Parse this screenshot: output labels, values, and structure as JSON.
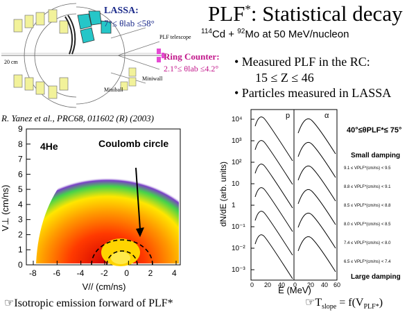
{
  "title": {
    "main": "PLF",
    "sup": "*",
    "rest": ": Statistical decay"
  },
  "reaction": {
    "a_mass": "114",
    "a_el": "Cd + ",
    "b_mass": "92",
    "b_el": "Mo at 50 MeV/nucleon"
  },
  "detector": {
    "lassa_label": "LASSA:",
    "lassa_range": "7°≤ θlab ≤58°",
    "ring_label": "Ring Counter:",
    "ring_range": "2.1°≤ θlab ≤4.2°",
    "plf_telescope": "PLF telescope",
    "miniwall": "Miniwall",
    "miniball": "Miniball",
    "scale": "20 cm",
    "colors": {
      "lassa": "#25c6c8",
      "ring": "#e64bd4",
      "miniball": "#f2f29a"
    }
  },
  "bullets": {
    "b1": "• Measured PLF in the RC:",
    "b1_range": "15 ≤ Z ≤ 46",
    "b2": "• Particles measured in LASSA"
  },
  "reference": "R. Yanez et al., PRC68, 011602 (R) (2003)",
  "vplot": {
    "label_he": "4He",
    "coulomb": "Coulomb circle",
    "ylabel": "V⊥ (cm/ns)",
    "xlabel": "V// (cm/ns)",
    "xticks": [
      "-8",
      "-6",
      "-4",
      "-2",
      "0",
      "2",
      "4"
    ],
    "yticks": [
      "0",
      "1",
      "2",
      "3",
      "4",
      "5",
      "6",
      "7",
      "8",
      "9"
    ]
  },
  "spectra": {
    "ylabel": "dN/dE (arb. units)",
    "xlabel": "E (MeV)",
    "panel_p": "p",
    "panel_alpha": "α",
    "theta": "40°≤θPLF*≤ 75°",
    "small_damping": "Small damping",
    "large_damping": "Large damping",
    "yticks": [
      "10⁴",
      "10³",
      "10²",
      "10",
      "1",
      "10⁻¹",
      "10⁻²",
      "10⁻³"
    ],
    "xticks": [
      "0",
      "20",
      "40",
      "0",
      "20",
      "40",
      "60"
    ],
    "bins": [
      "9.1 ≤ VPLF*(cm/ns) < 9.5",
      "8.8 ≤ VPLF*(cm/ns) < 9.1",
      "8.5 ≤ VPLF*(cm/ns) < 8.8",
      "8.0 ≤ VPLF*(cm/ns) < 8.5",
      "7.4 ≤ VPLF*(cm/ns) < 8.0",
      "6.5 ≤ VPLF*(cm/ns) < 7.4"
    ]
  },
  "footer": {
    "left": "Isotropic emission forward of PLF*",
    "right_a": "T",
    "right_sub": "slope",
    "right_b": " = f(V",
    "right_sub2": "PLF*",
    "right_c": ")"
  }
}
